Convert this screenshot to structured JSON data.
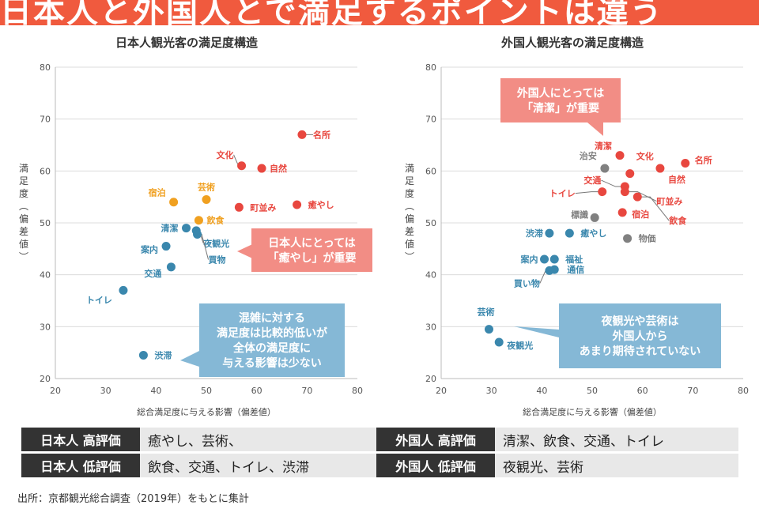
{
  "banner": {
    "title": "日本人と外国人とで満足するポイントは違う"
  },
  "colors": {
    "banner": "#f05a3e",
    "red": "#e8473f",
    "orange": "#f0a020",
    "blue": "#3a87ad",
    "gray": "#808080",
    "callout_red": "#f28d85",
    "callout_blue": "#85b8d6"
  },
  "chart_data": [
    {
      "type": "scatter",
      "title": "日本人観光客の満足度構造",
      "xlabel": "総合満足度に与える影響（偏差値）",
      "ylabel": "満足度（偏差値）",
      "xlim": [
        20,
        80
      ],
      "ylim": [
        20,
        80
      ],
      "xticks": [
        20,
        30,
        40,
        50,
        60,
        70,
        80
      ],
      "yticks": [
        20,
        30,
        40,
        50,
        60,
        70,
        80
      ],
      "points": [
        {
          "label": "名所",
          "x": 69,
          "y": 67,
          "group": "red"
        },
        {
          "label": "文化",
          "x": 57,
          "y": 61,
          "group": "red"
        },
        {
          "label": "自然",
          "x": 61,
          "y": 60.5,
          "group": "red"
        },
        {
          "label": "町並み",
          "x": 56.5,
          "y": 53,
          "group": "red"
        },
        {
          "label": "癒やし",
          "x": 68,
          "y": 53.5,
          "group": "red"
        },
        {
          "label": "宿泊",
          "x": 43.5,
          "y": 54,
          "group": "orange"
        },
        {
          "label": "芸術",
          "x": 50,
          "y": 54.5,
          "group": "orange"
        },
        {
          "label": "飲食",
          "x": 48.5,
          "y": 50.5,
          "group": "orange"
        },
        {
          "label": "清潔",
          "x": 46,
          "y": 49,
          "group": "blue"
        },
        {
          "label": "夜観光",
          "x": 48,
          "y": 48.5,
          "group": "blue"
        },
        {
          "label": "買物",
          "x": 48.2,
          "y": 47.8,
          "group": "blue"
        },
        {
          "label": "案内",
          "x": 42,
          "y": 45.5,
          "group": "blue"
        },
        {
          "label": "交通",
          "x": 43,
          "y": 41.5,
          "group": "blue"
        },
        {
          "label": "トイレ",
          "x": 33.5,
          "y": 37,
          "group": "blue"
        },
        {
          "label": "渋滞",
          "x": 37.5,
          "y": 24.5,
          "group": "blue"
        }
      ],
      "callouts": [
        {
          "lines": [
            "日本人にとっては",
            "「癒やし」が重要"
          ],
          "color": "red"
        },
        {
          "lines": [
            "混雑に対する",
            "満足度は比較的低いが",
            "全体の満足度に",
            "与える影響は少ない"
          ],
          "color": "blue"
        }
      ]
    },
    {
      "type": "scatter",
      "title": "外国人観光客の満足度構造",
      "xlabel": "総合満足度に与える影響（偏差値）",
      "ylabel": "満足度（偏差値）",
      "xlim": [
        20,
        80
      ],
      "ylim": [
        20,
        80
      ],
      "xticks": [
        20,
        30,
        40,
        50,
        60,
        70,
        80
      ],
      "yticks": [
        20,
        30,
        40,
        50,
        60,
        70,
        80
      ],
      "points": [
        {
          "label": "名所",
          "x": 68.5,
          "y": 61.5,
          "group": "red"
        },
        {
          "label": "自然",
          "x": 63.5,
          "y": 60.5,
          "group": "red"
        },
        {
          "label": "文化",
          "x": 57.5,
          "y": 59.5,
          "group": "red"
        },
        {
          "label": "清潔",
          "x": 55.5,
          "y": 63,
          "group": "red"
        },
        {
          "label": "交通",
          "x": 56.5,
          "y": 57,
          "group": "red"
        },
        {
          "label": "町並み",
          "x": 56.5,
          "y": 56,
          "group": "red"
        },
        {
          "label": "トイレ",
          "x": 52,
          "y": 56,
          "group": "red"
        },
        {
          "label": "飲食",
          "x": 59,
          "y": 55,
          "group": "red"
        },
        {
          "label": "宿泊",
          "x": 56,
          "y": 52,
          "group": "red"
        },
        {
          "label": "治安",
          "x": 52.5,
          "y": 60.5,
          "group": "gray"
        },
        {
          "label": "標識",
          "x": 50.5,
          "y": 51,
          "group": "gray"
        },
        {
          "label": "物価",
          "x": 57,
          "y": 47,
          "group": "gray"
        },
        {
          "label": "渋滞",
          "x": 41.5,
          "y": 48,
          "group": "blue"
        },
        {
          "label": "癒やし",
          "x": 45.5,
          "y": 48,
          "group": "blue"
        },
        {
          "label": "案内",
          "x": 40.5,
          "y": 43,
          "group": "blue"
        },
        {
          "label": "福祉",
          "x": 42.5,
          "y": 43,
          "group": "blue"
        },
        {
          "label": "通信",
          "x": 42.5,
          "y": 41,
          "group": "blue"
        },
        {
          "label": "買い物",
          "x": 41.5,
          "y": 40.8,
          "group": "blue"
        },
        {
          "label": "芸術",
          "x": 29.5,
          "y": 29.5,
          "group": "blue"
        },
        {
          "label": "夜観光",
          "x": 31.5,
          "y": 27,
          "group": "blue"
        }
      ],
      "callouts": [
        {
          "lines": [
            "外国人にとっては",
            "「清潔」が重要"
          ],
          "color": "red"
        },
        {
          "lines": [
            "夜観光や芸術は",
            "外国人から",
            "あまり期待されていない"
          ],
          "color": "blue"
        }
      ]
    }
  ],
  "summary_left": [
    {
      "header": "日本人 高評価",
      "value": "癒やし、芸術、"
    },
    {
      "header": "日本人 低評価",
      "value": "飲食、交通、トイレ、渋滞"
    }
  ],
  "summary_right": [
    {
      "header": "外国人 高評価",
      "value": "清潔、飲食、交通、トイレ"
    },
    {
      "header": "外国人 低評価",
      "value": "夜観光、芸術"
    }
  ],
  "source": "出所：京都観光総合調査（2019年）をもとに集計"
}
